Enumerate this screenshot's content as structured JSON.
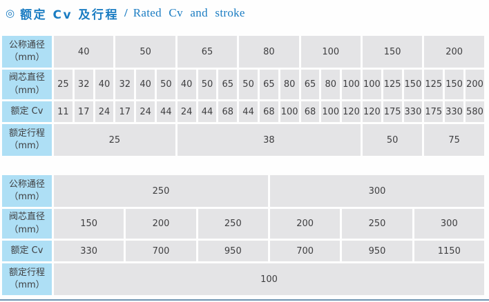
{
  "title": {
    "marker": "◎",
    "zh": "额定 Cv 及行程",
    "sep": "/",
    "en": "Rated Cv and stroke"
  },
  "colors": {
    "accent_blue": "#1a7cc2",
    "label_cell_bg": "#aedff5",
    "data_cell_bg": "#e4e4e6",
    "cell_text": "#3e3e40",
    "bottom_rule": "#6d93b1"
  },
  "tables": [
    {
      "name": "rated-cv-stroke-table-dn40-200",
      "rows": [
        {
          "name": "row-nominal-diameter",
          "label": "公称通径\n（mm）",
          "cells": [
            {
              "t": "40",
              "span": 3
            },
            {
              "t": "50",
              "span": 3
            },
            {
              "t": "65",
              "span": 3
            },
            {
              "t": "80",
              "span": 3
            },
            {
              "t": "100",
              "span": 3
            },
            {
              "t": "150",
              "span": 3
            },
            {
              "t": "200",
              "span": 3
            }
          ]
        },
        {
          "name": "row-plug-diameter",
          "label": "阀芯直径\n（mm）",
          "cells": [
            {
              "t": "25"
            },
            {
              "t": "32"
            },
            {
              "t": "40"
            },
            {
              "t": "32"
            },
            {
              "t": "40"
            },
            {
              "t": "50"
            },
            {
              "t": "40"
            },
            {
              "t": "50"
            },
            {
              "t": "65"
            },
            {
              "t": "50"
            },
            {
              "t": "65"
            },
            {
              "t": "80"
            },
            {
              "t": "65"
            },
            {
              "t": "80"
            },
            {
              "t": "100"
            },
            {
              "t": "100"
            },
            {
              "t": "125"
            },
            {
              "t": "150"
            },
            {
              "t": "125"
            },
            {
              "t": "150"
            },
            {
              "t": "200"
            }
          ]
        },
        {
          "name": "row-rated-cv",
          "label": "额定 Cv",
          "cells": [
            {
              "t": "11"
            },
            {
              "t": "17"
            },
            {
              "t": "24"
            },
            {
              "t": "17"
            },
            {
              "t": "24"
            },
            {
              "t": "44"
            },
            {
              "t": "24"
            },
            {
              "t": "44"
            },
            {
              "t": "68"
            },
            {
              "t": "44"
            },
            {
              "t": "68"
            },
            {
              "t": "100"
            },
            {
              "t": "68"
            },
            {
              "t": "100"
            },
            {
              "t": "120"
            },
            {
              "t": "120"
            },
            {
              "t": "175"
            },
            {
              "t": "330"
            },
            {
              "t": "175"
            },
            {
              "t": "330"
            },
            {
              "t": "580"
            }
          ]
        },
        {
          "name": "row-rated-stroke",
          "label": "额定行程\n（mm）",
          "cells": [
            {
              "t": "25",
              "span": 6
            },
            {
              "t": "38",
              "span": 9
            },
            {
              "t": "50",
              "span": 3
            },
            {
              "t": "75",
              "span": 3
            }
          ]
        }
      ]
    },
    {
      "name": "rated-cv-stroke-table-dn250-300",
      "rows": [
        {
          "name": "row-nominal-diameter",
          "label": "公称通径\n（mm）",
          "cells": [
            {
              "t": "250",
              "span": 3
            },
            {
              "t": "300",
              "span": 3
            }
          ]
        },
        {
          "name": "row-plug-diameter",
          "label": "阀芯直径\n（mm）",
          "cells": [
            {
              "t": "150"
            },
            {
              "t": "200"
            },
            {
              "t": "250"
            },
            {
              "t": "200"
            },
            {
              "t": "250"
            },
            {
              "t": "300"
            }
          ]
        },
        {
          "name": "row-rated-cv",
          "label": "额定 Cv",
          "cells": [
            {
              "t": "330"
            },
            {
              "t": "700"
            },
            {
              "t": "950"
            },
            {
              "t": "700"
            },
            {
              "t": "950"
            },
            {
              "t": "1150"
            }
          ]
        },
        {
          "name": "row-rated-stroke",
          "label": "额定行程\n（mm）",
          "cells": [
            {
              "t": "100",
              "span": 6
            }
          ]
        }
      ]
    }
  ]
}
